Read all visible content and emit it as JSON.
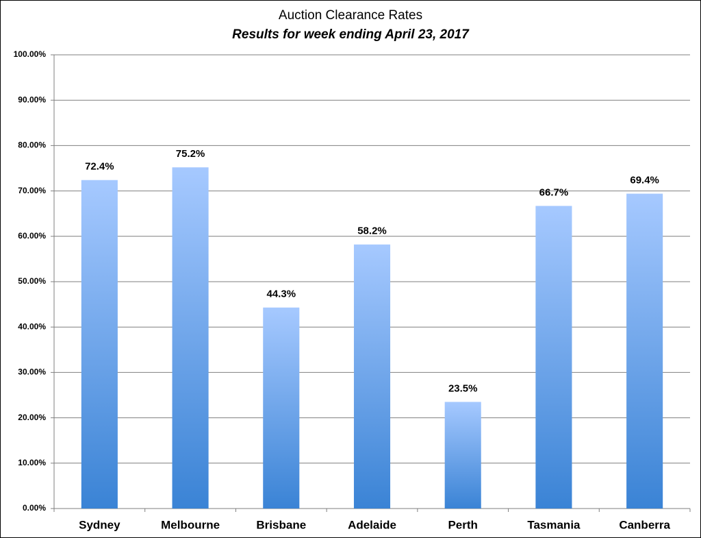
{
  "chart_data": {
    "type": "bar",
    "title": "Auction Clearance Rates",
    "subtitle": "Results for week ending April 23, 2017",
    "categories": [
      "Sydney",
      "Melbourne",
      "Brisbane",
      "Adelaide",
      "Perth",
      "Tasmania",
      "Canberra"
    ],
    "values": [
      72.4,
      75.2,
      44.3,
      58.2,
      23.5,
      66.7,
      69.4
    ],
    "value_labels": [
      "72.4%",
      "75.2%",
      "44.3%",
      "58.2%",
      "23.5%",
      "66.7%",
      "69.4%"
    ],
    "colors": [
      "#a6c9ff",
      "#3a83d5"
    ],
    "ylim": [
      0,
      100
    ],
    "yticks": [
      {
        "value": 0,
        "label": "0.00%"
      },
      {
        "value": 10,
        "label": "10.00%"
      },
      {
        "value": 20,
        "label": "20.00%"
      },
      {
        "value": 30,
        "label": "30.00%"
      },
      {
        "value": 40,
        "label": "40.00%"
      },
      {
        "value": 50,
        "label": "50.00%"
      },
      {
        "value": 60,
        "label": "60.00%"
      },
      {
        "value": 70,
        "label": "70.00%"
      },
      {
        "value": 80,
        "label": "80.00%"
      },
      {
        "value": 90,
        "label": "90.00%"
      },
      {
        "value": 100,
        "label": "100.00%"
      }
    ],
    "grid": true
  }
}
